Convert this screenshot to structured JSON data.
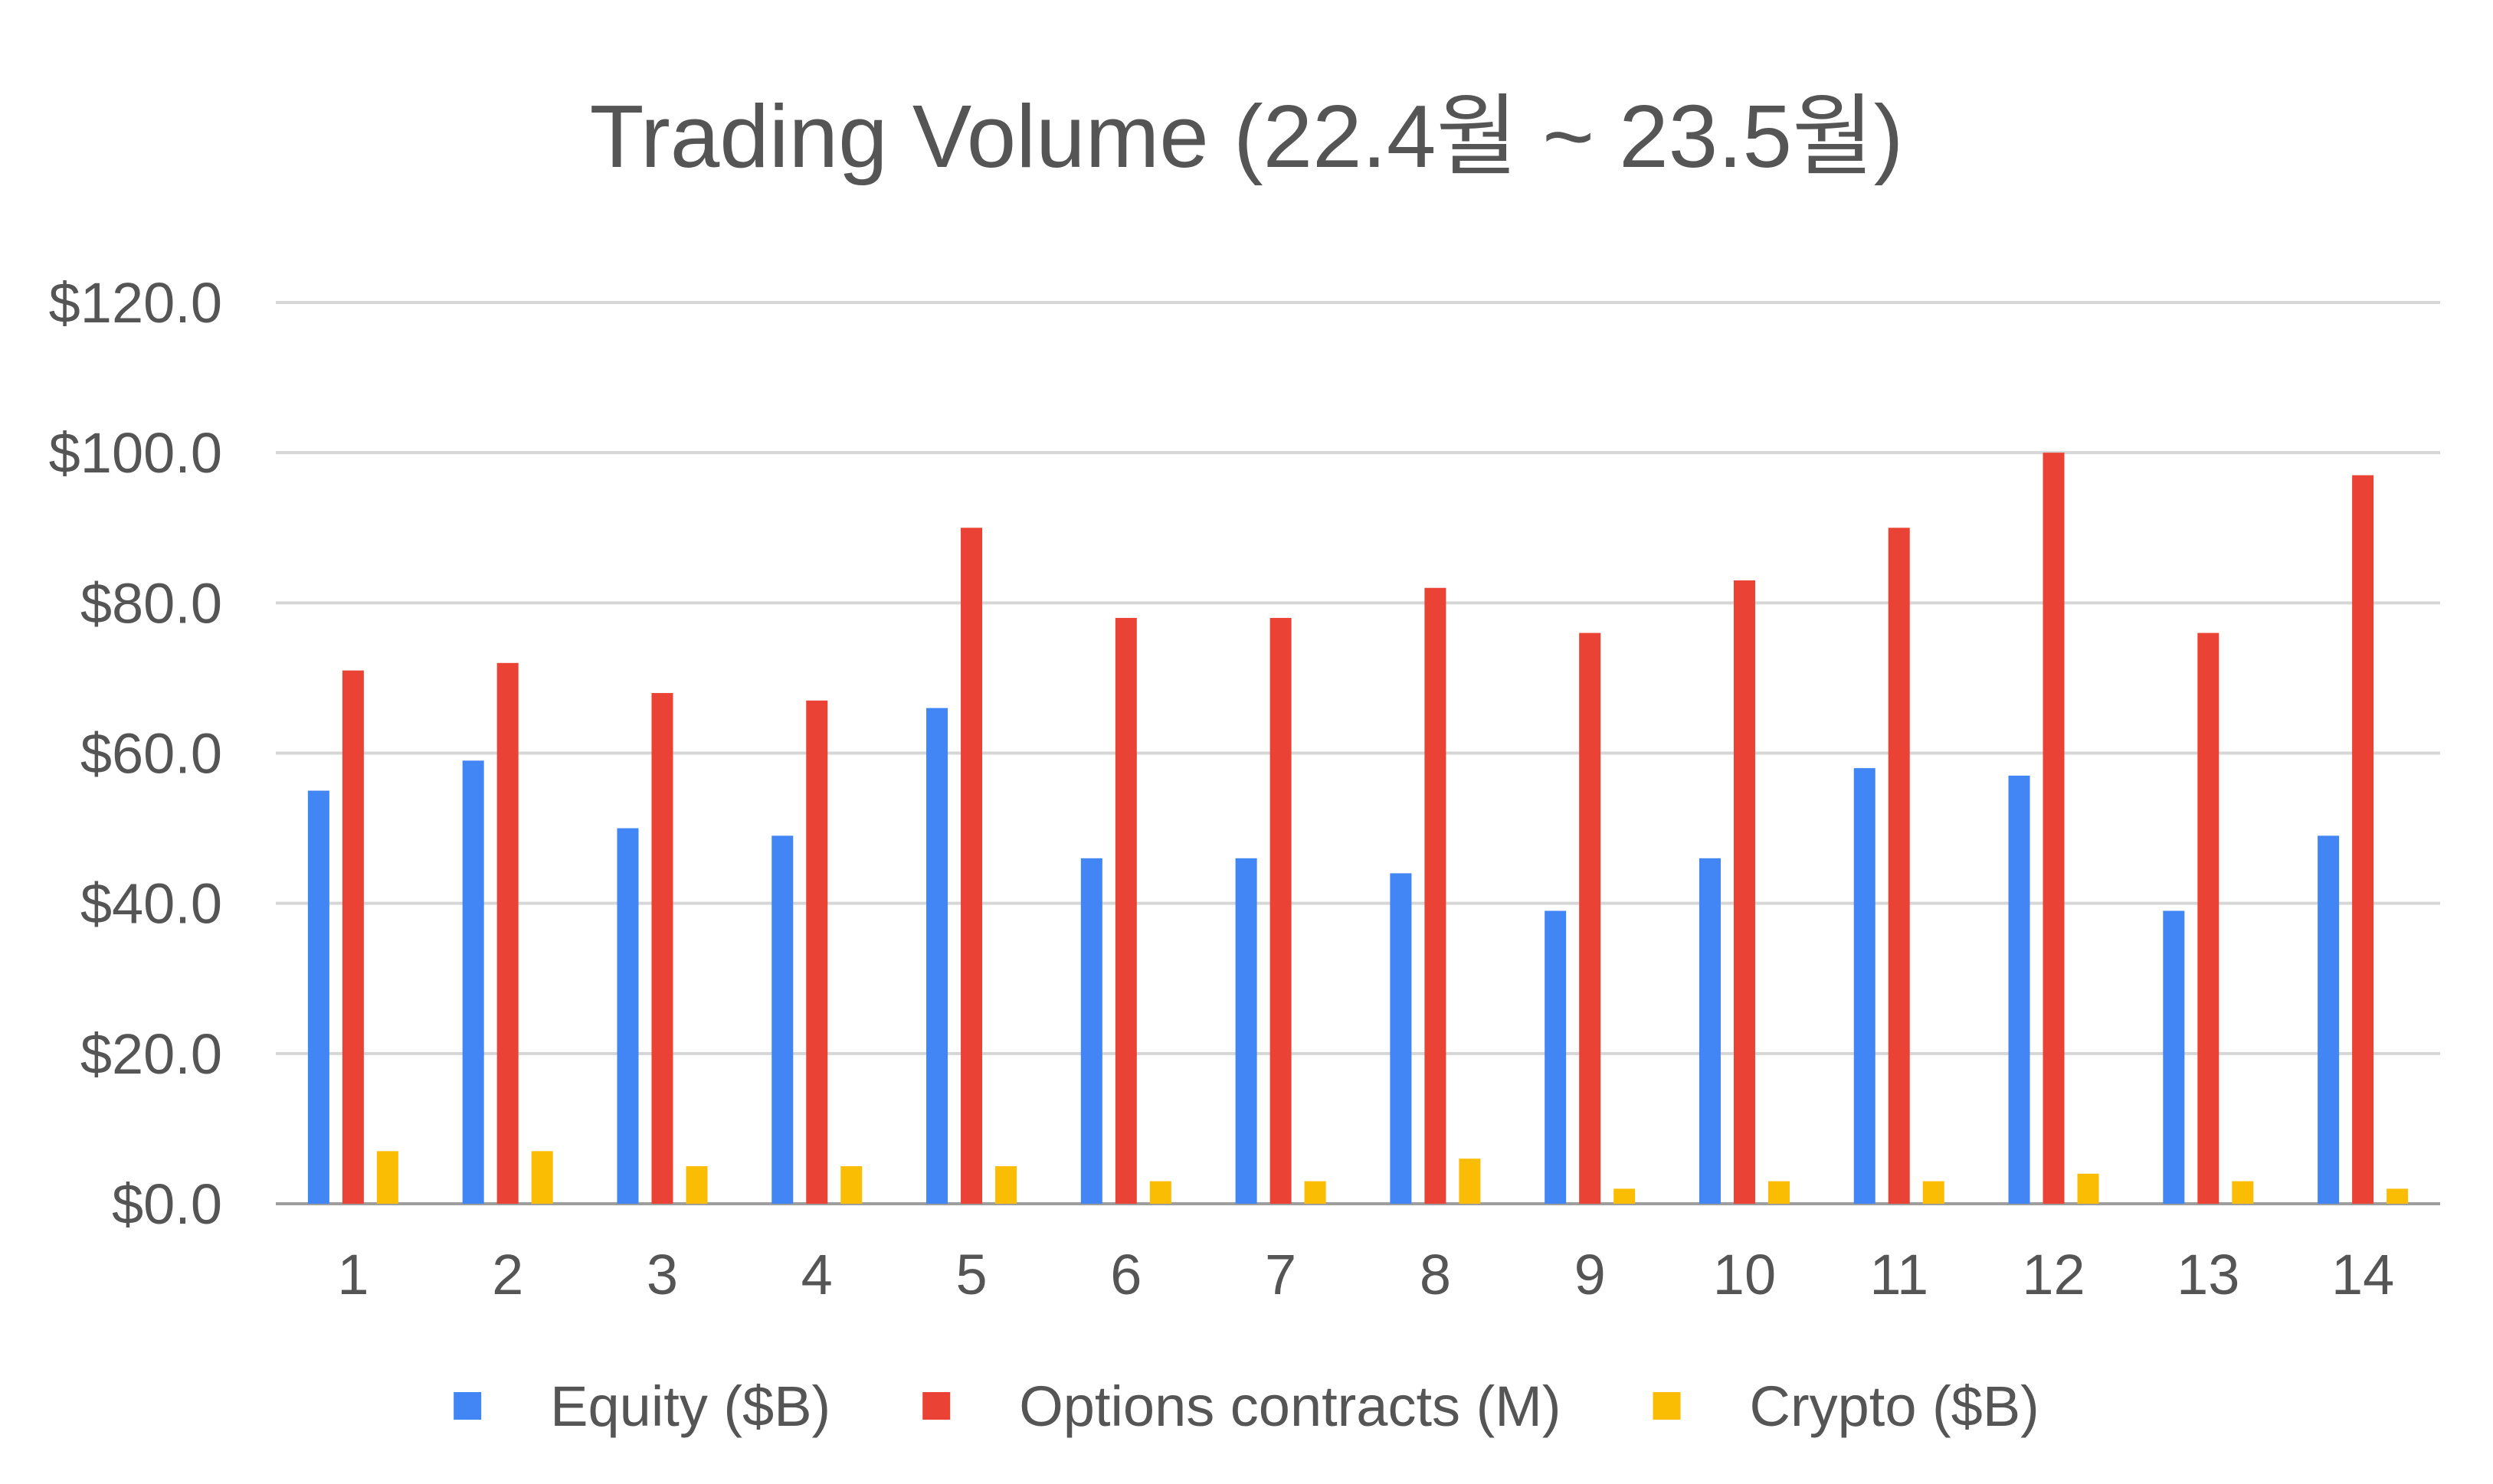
{
  "chart_data": {
    "type": "bar",
    "title": "Trading Volume (22.4월 ~ 23.5월)",
    "xlabel": "",
    "ylabel": "",
    "categories": [
      "1",
      "2",
      "3",
      "4",
      "5",
      "6",
      "7",
      "8",
      "9",
      "10",
      "11",
      "12",
      "13",
      "14"
    ],
    "ylim": [
      0,
      120
    ],
    "yticks": [
      0,
      20,
      40,
      60,
      80,
      100,
      120
    ],
    "ytick_labels": [
      "$0.0",
      "$20.0",
      "$40.0",
      "$60.0",
      "$80.0",
      "$100.0",
      "$120.0"
    ],
    "grid": true,
    "legend_position": "bottom",
    "series": [
      {
        "name": "Equity ($B)",
        "color": "#4285f4",
        "values": [
          55,
          59,
          50,
          49,
          66,
          46,
          46,
          44,
          39,
          46,
          58,
          57,
          39,
          49
        ]
      },
      {
        "name": "Options contracts (M)",
        "color": "#ea4335",
        "values": [
          71,
          72,
          68,
          67,
          90,
          78,
          78,
          82,
          76,
          83,
          90,
          100,
          76,
          97
        ]
      },
      {
        "name": "Crypto ($B)",
        "color": "#fbbc04",
        "values": [
          7,
          7,
          5,
          5,
          5,
          3,
          3,
          6,
          2,
          3,
          3,
          4,
          3,
          2
        ]
      }
    ]
  }
}
